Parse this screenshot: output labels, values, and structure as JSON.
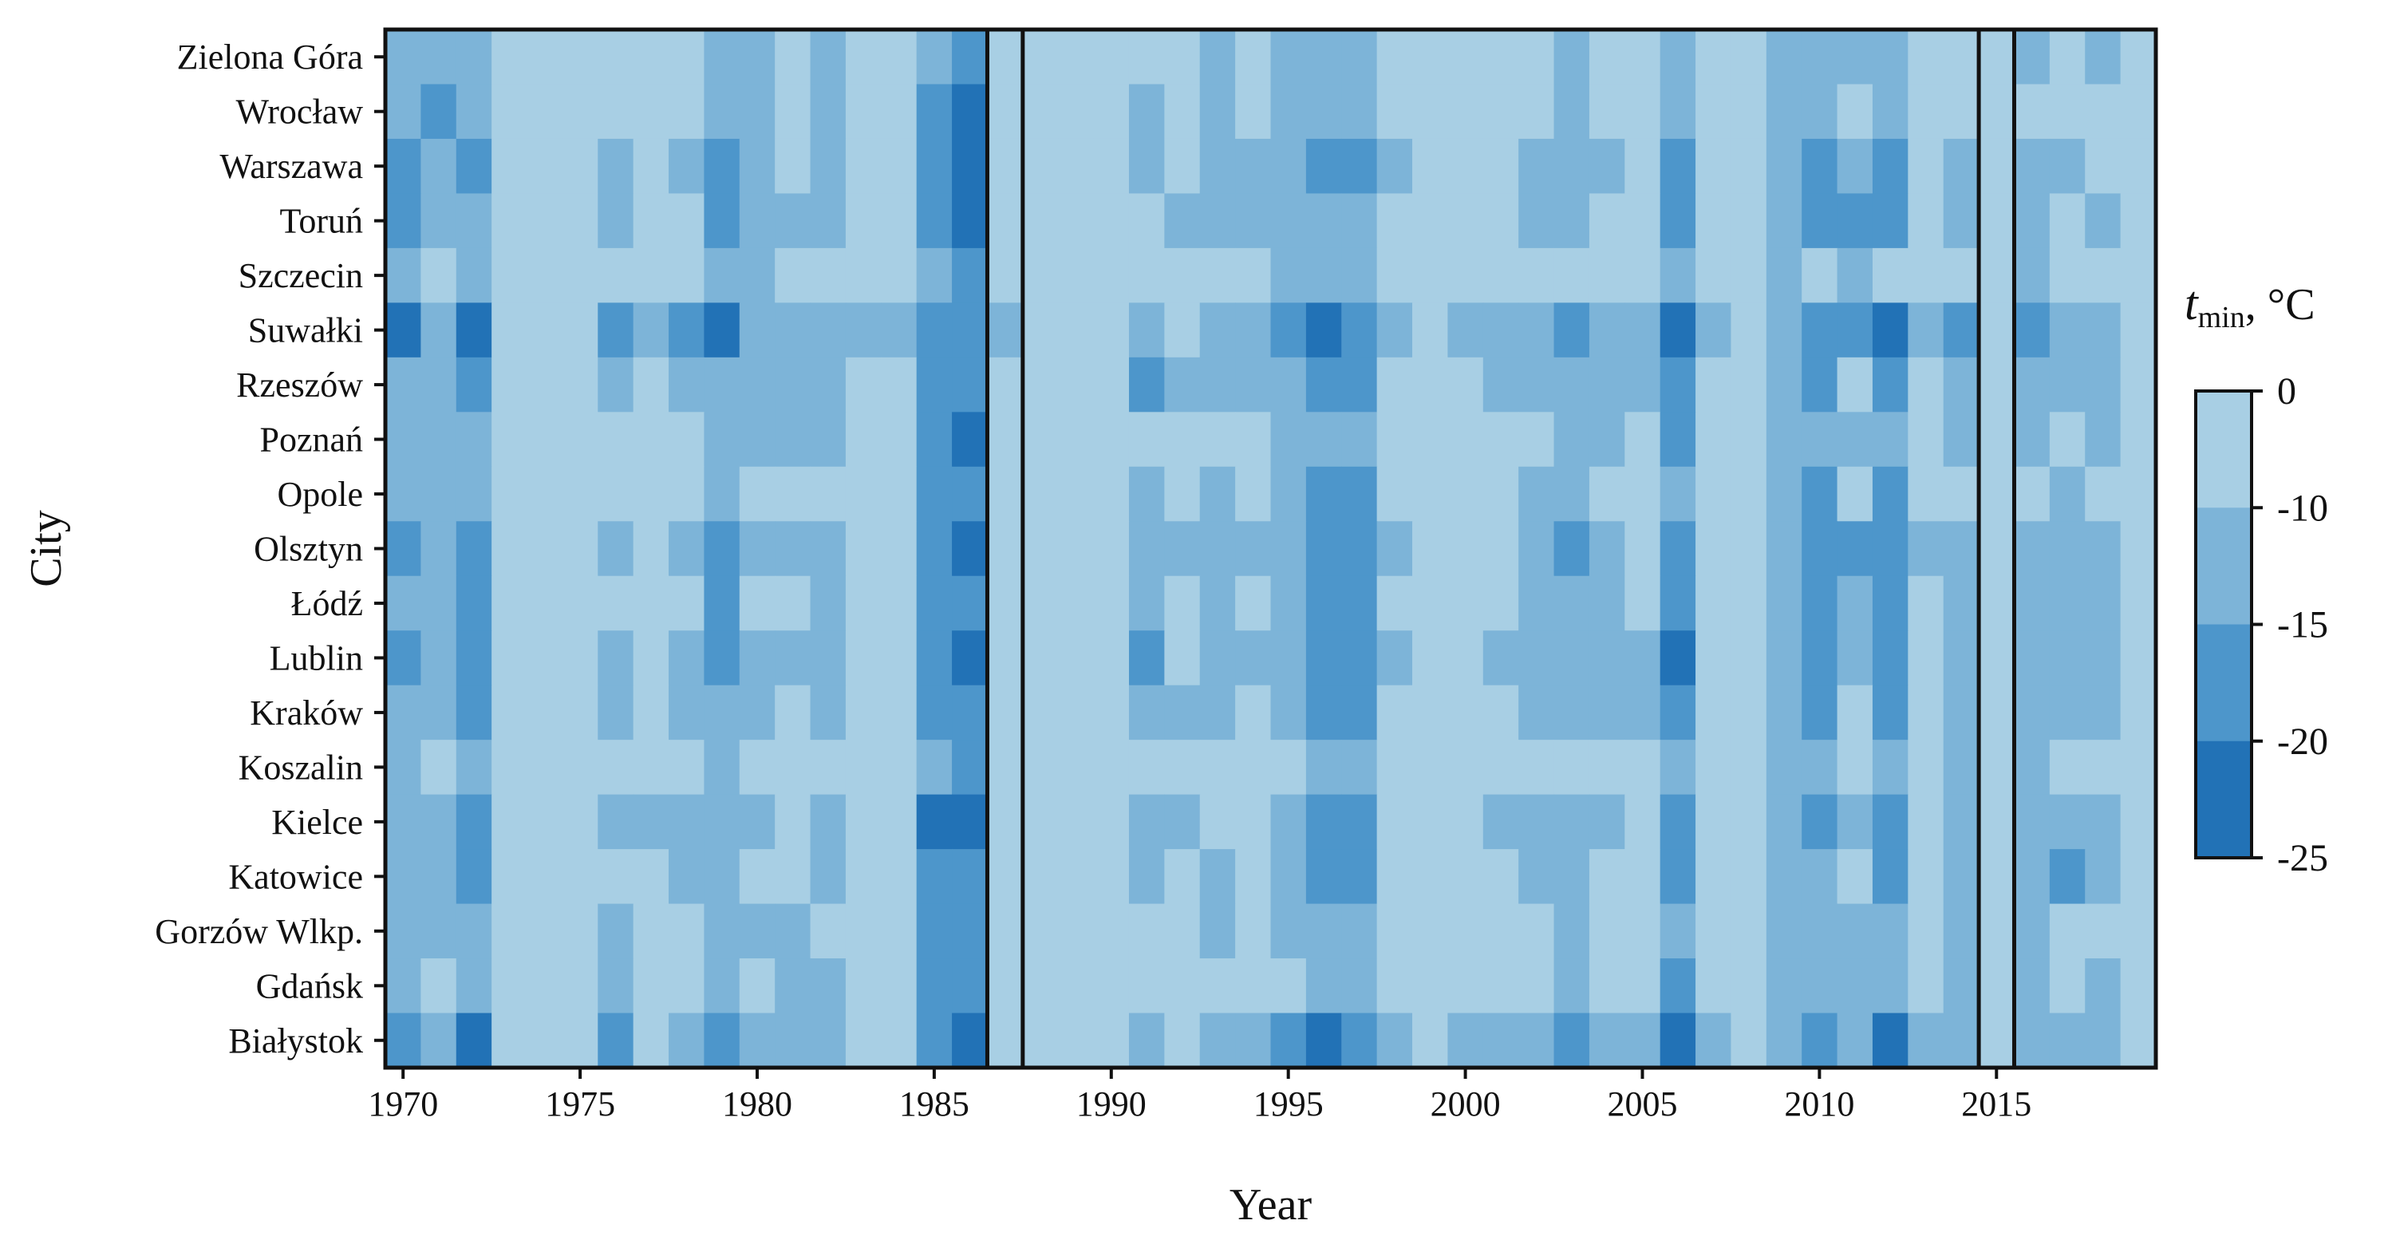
{
  "chart_data": {
    "type": "heatmap",
    "title": "",
    "xlabel": "Year",
    "ylabel": "City",
    "x": [
      1970,
      1971,
      1972,
      1973,
      1974,
      1975,
      1976,
      1977,
      1978,
      1979,
      1980,
      1981,
      1982,
      1983,
      1984,
      1985,
      1986,
      1987,
      1988,
      1989,
      1990,
      1991,
      1992,
      1993,
      1994,
      1995,
      1996,
      1997,
      1998,
      1999,
      2000,
      2001,
      2002,
      2003,
      2004,
      2005,
      2006,
      2007,
      2008,
      2009,
      2010,
      2011,
      2012,
      2013,
      2014,
      2015,
      2016,
      2017,
      2018,
      2019
    ],
    "x_ticks": [
      "1970",
      "1975",
      "1980",
      "1985",
      "1990",
      "1995",
      "2000",
      "2005",
      "2010",
      "2015"
    ],
    "y": [
      "Zielona Góra",
      "Wrocław",
      "Warszawa",
      "Toruń",
      "Szczecin",
      "Suwałki",
      "Rzeszów",
      "Poznań",
      "Opole",
      "Olsztyn",
      "Łódź",
      "Lublin",
      "Kraków",
      "Koszalin",
      "Kielce",
      "Katowice",
      "Gorzów Wlkp.",
      "Gdańsk",
      "Białystok"
    ],
    "value_encoding": "bin index: 0 = 0 to -10, 1 = -10 to -15, 2 = -15 to -20, 3 = -20 to -25",
    "values": [
      [
        1,
        1,
        1,
        0,
        0,
        0,
        0,
        0,
        0,
        1,
        1,
        0,
        1,
        0,
        0,
        1,
        2,
        0,
        0,
        0,
        0,
        0,
        0,
        1,
        0,
        1,
        1,
        1,
        0,
        0,
        0,
        0,
        0,
        1,
        0,
        0,
        1,
        0,
        0,
        1,
        1,
        1,
        1,
        0,
        0,
        0,
        1,
        0,
        1,
        0
      ],
      [
        1,
        2,
        1,
        0,
        0,
        0,
        0,
        0,
        0,
        1,
        1,
        0,
        1,
        0,
        0,
        2,
        3,
        0,
        0,
        0,
        0,
        1,
        0,
        1,
        0,
        1,
        1,
        1,
        0,
        0,
        0,
        0,
        0,
        1,
        0,
        0,
        1,
        0,
        0,
        1,
        1,
        0,
        1,
        0,
        0,
        0,
        0,
        0,
        0,
        0
      ],
      [
        2,
        1,
        2,
        0,
        0,
        0,
        1,
        0,
        1,
        2,
        1,
        0,
        1,
        0,
        0,
        2,
        3,
        0,
        0,
        0,
        0,
        1,
        0,
        1,
        1,
        1,
        2,
        2,
        1,
        0,
        0,
        0,
        1,
        1,
        1,
        0,
        2,
        0,
        0,
        1,
        2,
        1,
        2,
        0,
        1,
        0,
        1,
        1,
        0,
        0
      ],
      [
        2,
        1,
        1,
        0,
        0,
        0,
        1,
        0,
        0,
        2,
        1,
        1,
        1,
        0,
        0,
        2,
        3,
        0,
        0,
        0,
        0,
        0,
        1,
        1,
        1,
        1,
        1,
        1,
        0,
        0,
        0,
        0,
        1,
        1,
        0,
        0,
        2,
        0,
        0,
        1,
        2,
        2,
        2,
        0,
        1,
        0,
        1,
        0,
        1,
        0
      ],
      [
        1,
        0,
        1,
        0,
        0,
        0,
        0,
        0,
        0,
        1,
        1,
        0,
        0,
        0,
        0,
        1,
        2,
        0,
        0,
        0,
        0,
        0,
        0,
        0,
        0,
        1,
        1,
        1,
        0,
        0,
        0,
        0,
        0,
        0,
        0,
        0,
        1,
        0,
        0,
        1,
        0,
        1,
        0,
        0,
        0,
        0,
        1,
        0,
        0,
        0
      ],
      [
        3,
        1,
        3,
        0,
        0,
        0,
        2,
        1,
        2,
        3,
        1,
        1,
        1,
        1,
        1,
        2,
        2,
        1,
        0,
        0,
        0,
        1,
        0,
        1,
        1,
        2,
        3,
        2,
        1,
        0,
        1,
        1,
        1,
        2,
        1,
        1,
        3,
        1,
        0,
        1,
        2,
        2,
        3,
        1,
        2,
        0,
        2,
        1,
        1,
        0
      ],
      [
        1,
        1,
        2,
        0,
        0,
        0,
        1,
        0,
        1,
        1,
        1,
        1,
        1,
        0,
        0,
        2,
        2,
        0,
        0,
        0,
        0,
        2,
        1,
        1,
        1,
        1,
        2,
        2,
        0,
        0,
        0,
        1,
        1,
        1,
        1,
        1,
        2,
        0,
        0,
        1,
        2,
        0,
        2,
        0,
        1,
        0,
        1,
        1,
        1,
        0
      ],
      [
        1,
        1,
        1,
        0,
        0,
        0,
        0,
        0,
        0,
        1,
        1,
        1,
        1,
        0,
        0,
        2,
        3,
        0,
        0,
        0,
        0,
        0,
        0,
        0,
        0,
        1,
        1,
        1,
        0,
        0,
        0,
        0,
        0,
        1,
        1,
        0,
        2,
        0,
        0,
        1,
        1,
        1,
        1,
        0,
        1,
        0,
        1,
        0,
        1,
        0
      ],
      [
        1,
        1,
        1,
        0,
        0,
        0,
        0,
        0,
        0,
        1,
        0,
        0,
        0,
        0,
        0,
        2,
        2,
        0,
        0,
        0,
        0,
        1,
        0,
        1,
        0,
        1,
        2,
        2,
        0,
        0,
        0,
        0,
        1,
        1,
        0,
        0,
        1,
        0,
        0,
        1,
        2,
        0,
        2,
        0,
        0,
        0,
        0,
        1,
        0,
        0
      ],
      [
        2,
        1,
        2,
        0,
        0,
        0,
        1,
        0,
        1,
        2,
        1,
        1,
        1,
        0,
        0,
        2,
        3,
        0,
        0,
        0,
        0,
        1,
        1,
        1,
        1,
        1,
        2,
        2,
        1,
        0,
        0,
        0,
        1,
        2,
        1,
        0,
        2,
        0,
        0,
        1,
        2,
        2,
        2,
        1,
        1,
        0,
        1,
        1,
        1,
        0
      ],
      [
        1,
        1,
        2,
        0,
        0,
        0,
        0,
        0,
        0,
        2,
        0,
        0,
        1,
        0,
        0,
        2,
        2,
        0,
        0,
        0,
        0,
        1,
        0,
        1,
        0,
        1,
        2,
        2,
        0,
        0,
        0,
        0,
        1,
        1,
        1,
        0,
        2,
        0,
        0,
        1,
        2,
        1,
        2,
        0,
        1,
        0,
        1,
        1,
        1,
        0
      ],
      [
        2,
        1,
        2,
        0,
        0,
        0,
        1,
        0,
        1,
        2,
        1,
        1,
        1,
        0,
        0,
        2,
        3,
        0,
        0,
        0,
        0,
        2,
        0,
        1,
        1,
        1,
        2,
        2,
        1,
        0,
        0,
        1,
        1,
        1,
        1,
        1,
        3,
        0,
        0,
        1,
        2,
        1,
        2,
        0,
        1,
        0,
        1,
        1,
        1,
        0
      ],
      [
        1,
        1,
        2,
        0,
        0,
        0,
        1,
        0,
        1,
        1,
        1,
        0,
        1,
        0,
        0,
        2,
        2,
        0,
        0,
        0,
        0,
        1,
        1,
        1,
        0,
        1,
        2,
        2,
        0,
        0,
        0,
        0,
        1,
        1,
        1,
        1,
        2,
        0,
        0,
        1,
        2,
        0,
        2,
        0,
        1,
        0,
        1,
        1,
        1,
        0
      ],
      [
        1,
        0,
        1,
        0,
        0,
        0,
        0,
        0,
        0,
        1,
        0,
        0,
        0,
        0,
        0,
        1,
        2,
        0,
        0,
        0,
        0,
        0,
        0,
        0,
        0,
        0,
        1,
        1,
        0,
        0,
        0,
        0,
        0,
        0,
        0,
        0,
        1,
        0,
        0,
        1,
        1,
        0,
        1,
        0,
        1,
        0,
        1,
        0,
        0,
        0
      ],
      [
        1,
        1,
        2,
        0,
        0,
        0,
        1,
        1,
        1,
        1,
        1,
        0,
        1,
        0,
        0,
        3,
        3,
        0,
        0,
        0,
        0,
        1,
        1,
        0,
        0,
        1,
        2,
        2,
        0,
        0,
        0,
        1,
        1,
        1,
        1,
        0,
        2,
        0,
        0,
        1,
        2,
        1,
        2,
        0,
        1,
        0,
        1,
        1,
        1,
        0
      ],
      [
        1,
        1,
        2,
        0,
        0,
        0,
        0,
        0,
        1,
        1,
        0,
        0,
        1,
        0,
        0,
        2,
        2,
        0,
        0,
        0,
        0,
        1,
        0,
        1,
        0,
        1,
        2,
        2,
        0,
        0,
        0,
        0,
        1,
        1,
        0,
        0,
        2,
        0,
        0,
        1,
        1,
        0,
        2,
        0,
        1,
        0,
        1,
        2,
        1,
        0
      ],
      [
        1,
        1,
        1,
        0,
        0,
        0,
        1,
        0,
        0,
        1,
        1,
        1,
        0,
        0,
        0,
        2,
        2,
        0,
        0,
        0,
        0,
        0,
        0,
        1,
        0,
        1,
        1,
        1,
        0,
        0,
        0,
        0,
        0,
        1,
        0,
        0,
        1,
        0,
        0,
        1,
        1,
        1,
        1,
        0,
        1,
        0,
        1,
        0,
        0,
        0
      ],
      [
        1,
        0,
        1,
        0,
        0,
        0,
        1,
        0,
        0,
        1,
        0,
        1,
        1,
        0,
        0,
        2,
        2,
        0,
        0,
        0,
        0,
        0,
        0,
        0,
        0,
        0,
        1,
        1,
        0,
        0,
        0,
        0,
        0,
        1,
        0,
        0,
        2,
        0,
        0,
        1,
        1,
        1,
        1,
        0,
        1,
        0,
        1,
        0,
        1,
        0
      ],
      [
        2,
        1,
        3,
        0,
        0,
        0,
        2,
        0,
        1,
        2,
        1,
        1,
        1,
        0,
        0,
        2,
        3,
        0,
        0,
        0,
        0,
        1,
        0,
        1,
        1,
        2,
        3,
        2,
        1,
        0,
        1,
        1,
        1,
        2,
        1,
        1,
        3,
        1,
        0,
        1,
        2,
        1,
        3,
        1,
        1,
        0,
        1,
        1,
        1,
        0
      ]
    ],
    "highlighted_columns": [
      1987,
      2015
    ],
    "colorbar": {
      "title_main": "t",
      "title_sub": "min",
      "title_unit": ", °C",
      "ticks": [
        "0",
        "-10",
        "-15",
        "-20",
        "-25"
      ],
      "colors": [
        "#a8cfe4",
        "#7db4d8",
        "#4d96cb",
        "#2272b6"
      ]
    },
    "grid": false
  }
}
